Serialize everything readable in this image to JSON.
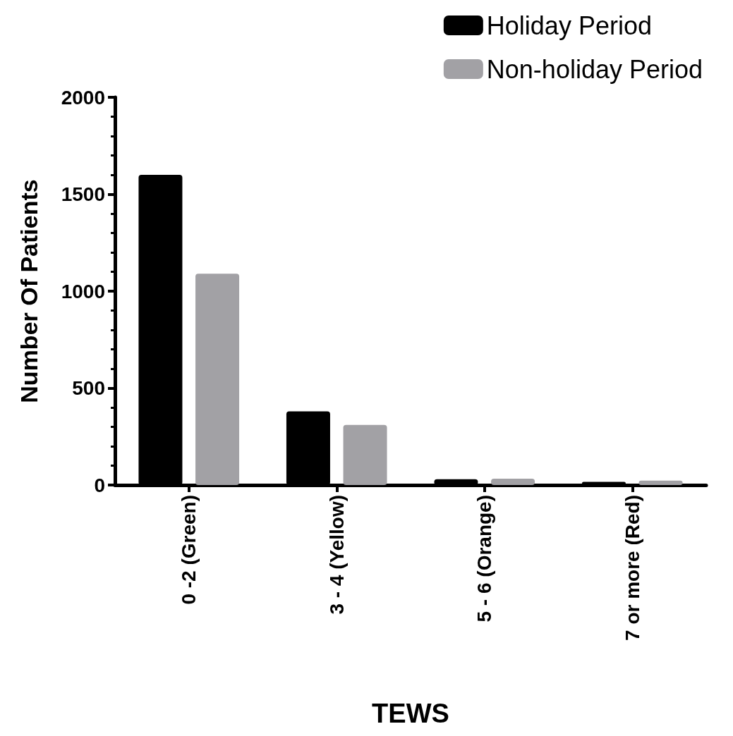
{
  "chart_data": {
    "type": "bar",
    "xlabel": "TEWS",
    "ylabel": "Number Of Patients",
    "categories": [
      "0 -2 (Green)",
      "3 - 4 (Yellow)",
      "5 - 6 (Orange)",
      "7 or more (Red)"
    ],
    "series": [
      {
        "name": "Holiday Period",
        "color": "#000000",
        "values": [
          1600,
          380,
          30,
          16
        ]
      },
      {
        "name": "Non-holiday Period",
        "color": "#a2a1a5",
        "values": [
          1090,
          310,
          33,
          23
        ]
      }
    ],
    "ylim": [
      0,
      2000
    ],
    "yticks": [
      0,
      500,
      1000,
      1500,
      2000
    ],
    "grid": false,
    "legend": "top right"
  }
}
